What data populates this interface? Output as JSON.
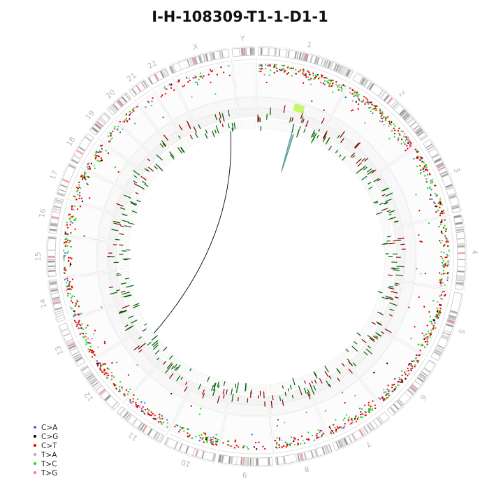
{
  "title": "I-H-108309-T1-1-D1-1",
  "chart_data": {
    "type": "circos",
    "title": "I-H-108309-T1-1-D1-1",
    "chromosomes": [
      "1",
      "2",
      "3",
      "4",
      "5",
      "6",
      "7",
      "8",
      "9",
      "10",
      "11",
      "12",
      "13",
      "14",
      "15",
      "16",
      "17",
      "18",
      "19",
      "20",
      "21",
      "22",
      "X",
      "Y"
    ],
    "chromosome_sizes_mb": [
      249,
      242,
      198,
      190,
      181,
      171,
      159,
      145,
      138,
      134,
      135,
      133,
      114,
      107,
      102,
      90,
      83,
      80,
      59,
      64,
      47,
      51,
      156,
      57
    ],
    "legend": [
      {
        "label": "C>A",
        "color": "#4169e1"
      },
      {
        "label": "C>G",
        "color": "#000000"
      },
      {
        "label": "C>T",
        "color": "#e60000"
      },
      {
        "label": "T>A",
        "color": "#9fb3b3"
      },
      {
        "label": "T>C",
        "color": "#1edc1e"
      },
      {
        "label": "T>G",
        "color": "#ff69b4"
      }
    ],
    "mutation_density": [
      0.9,
      1.0,
      0.8,
      0.8,
      0.85,
      0.9,
      0.95,
      0.85,
      0.3,
      0.85,
      0.8,
      0.9,
      0.85,
      0.8,
      0.7,
      0.65,
      0.85,
      0.9,
      0.6,
      0.7,
      0.3,
      0.4,
      0.4,
      0.0
    ],
    "cnv_gain_color": "#006400",
    "cnv_loss_color": "#8b0000",
    "highlight_region": {
      "chromosome": "1",
      "start_mb": 125,
      "end_mb": 160,
      "color": "#c8f56e"
    },
    "links": [
      {
        "from_chr": "1",
        "from_mb": 143,
        "to_chr": "1",
        "to_mb": 150,
        "color": "#5f9ea0"
      },
      {
        "from_chr": "X",
        "from_mb": 120,
        "to_chr": "12",
        "to_mb": 95,
        "color": "#000000"
      }
    ]
  }
}
